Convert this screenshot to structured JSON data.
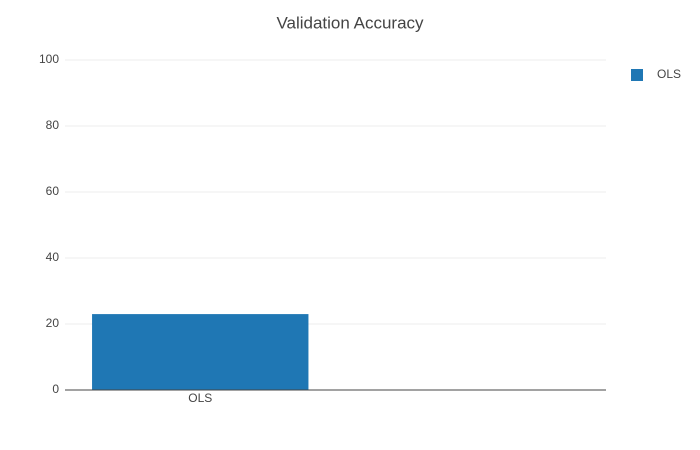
{
  "chart_data": {
    "type": "bar",
    "title": "Validation Accuracy",
    "categories": [
      "OLS",
      null
    ],
    "series": [
      {
        "name": "OLS",
        "color": "#1f77b4",
        "values": [
          23,
          null
        ]
      }
    ],
    "ylim": [
      0,
      100
    ],
    "yticks": [
      0,
      20,
      40,
      60,
      80,
      100
    ],
    "grid": true,
    "legend": "top-right"
  }
}
